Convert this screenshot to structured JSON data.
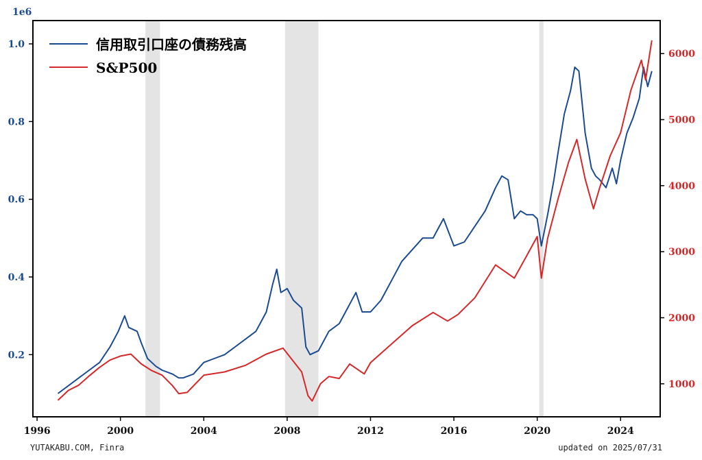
{
  "chart_data": {
    "type": "line",
    "xlim": [
      1995.8,
      2025.9
    ],
    "x_ticks": [
      "1996",
      "2000",
      "2004",
      "2008",
      "2012",
      "2016",
      "2020",
      "2024"
    ],
    "left_axis": {
      "ylim": [
        0.04,
        1.06
      ],
      "ticks": [
        "0.2",
        "0.4",
        "0.6",
        "0.8",
        "1.0"
      ],
      "offset_label": "1e6",
      "color": "#1a4a8f"
    },
    "right_axis": {
      "ylim": [
        500,
        6500
      ],
      "ticks": [
        "1000",
        "2000",
        "3000",
        "4000",
        "5000",
        "6000"
      ],
      "color": "#d62728"
    },
    "recessions": [
      [
        2001.2,
        2001.9
      ],
      [
        2007.9,
        2009.5
      ],
      [
        2020.1,
        2020.3
      ]
    ],
    "legend_position": "top-left",
    "series": [
      {
        "name": "信用取引口座の債務残高",
        "axis": "left",
        "color": "#1a4a8f",
        "points": [
          [
            1997.0,
            0.1
          ],
          [
            1997.5,
            0.12
          ],
          [
            1998.0,
            0.14
          ],
          [
            1998.5,
            0.16
          ],
          [
            1999.0,
            0.18
          ],
          [
            1999.5,
            0.22
          ],
          [
            1999.9,
            0.26
          ],
          [
            2000.2,
            0.3
          ],
          [
            2000.4,
            0.27
          ],
          [
            2000.8,
            0.26
          ],
          [
            2001.0,
            0.23
          ],
          [
            2001.3,
            0.19
          ],
          [
            2001.7,
            0.17
          ],
          [
            2002.0,
            0.16
          ],
          [
            2002.5,
            0.15
          ],
          [
            2002.8,
            0.14
          ],
          [
            2003.0,
            0.14
          ],
          [
            2003.5,
            0.15
          ],
          [
            2004.0,
            0.18
          ],
          [
            2004.5,
            0.19
          ],
          [
            2005.0,
            0.2
          ],
          [
            2005.5,
            0.22
          ],
          [
            2006.0,
            0.24
          ],
          [
            2006.5,
            0.26
          ],
          [
            2007.0,
            0.31
          ],
          [
            2007.3,
            0.38
          ],
          [
            2007.5,
            0.42
          ],
          [
            2007.7,
            0.36
          ],
          [
            2008.0,
            0.37
          ],
          [
            2008.3,
            0.34
          ],
          [
            2008.7,
            0.32
          ],
          [
            2008.9,
            0.22
          ],
          [
            2009.1,
            0.2
          ],
          [
            2009.5,
            0.21
          ],
          [
            2010.0,
            0.26
          ],
          [
            2010.5,
            0.28
          ],
          [
            2011.0,
            0.33
          ],
          [
            2011.3,
            0.36
          ],
          [
            2011.6,
            0.31
          ],
          [
            2012.0,
            0.31
          ],
          [
            2012.5,
            0.34
          ],
          [
            2013.0,
            0.39
          ],
          [
            2013.5,
            0.44
          ],
          [
            2014.0,
            0.47
          ],
          [
            2014.5,
            0.5
          ],
          [
            2015.0,
            0.5
          ],
          [
            2015.5,
            0.55
          ],
          [
            2016.0,
            0.48
          ],
          [
            2016.5,
            0.49
          ],
          [
            2017.0,
            0.53
          ],
          [
            2017.5,
            0.57
          ],
          [
            2018.0,
            0.63
          ],
          [
            2018.3,
            0.66
          ],
          [
            2018.6,
            0.65
          ],
          [
            2018.9,
            0.55
          ],
          [
            2019.2,
            0.57
          ],
          [
            2019.5,
            0.56
          ],
          [
            2019.8,
            0.56
          ],
          [
            2020.0,
            0.55
          ],
          [
            2020.2,
            0.48
          ],
          [
            2020.5,
            0.56
          ],
          [
            2020.8,
            0.65
          ],
          [
            2021.0,
            0.72
          ],
          [
            2021.3,
            0.82
          ],
          [
            2021.6,
            0.88
          ],
          [
            2021.8,
            0.94
          ],
          [
            2022.0,
            0.93
          ],
          [
            2022.3,
            0.77
          ],
          [
            2022.6,
            0.68
          ],
          [
            2022.8,
            0.66
          ],
          [
            2023.0,
            0.65
          ],
          [
            2023.3,
            0.63
          ],
          [
            2023.6,
            0.68
          ],
          [
            2023.8,
            0.64
          ],
          [
            2024.0,
            0.7
          ],
          [
            2024.3,
            0.77
          ],
          [
            2024.6,
            0.81
          ],
          [
            2024.9,
            0.86
          ],
          [
            2025.1,
            0.94
          ],
          [
            2025.3,
            0.89
          ],
          [
            2025.5,
            0.93
          ]
        ]
      },
      {
        "name": "S&P500",
        "axis": "right",
        "color": "#d62728",
        "points": [
          [
            1997.0,
            750
          ],
          [
            1997.5,
            900
          ],
          [
            1998.0,
            980
          ],
          [
            1998.5,
            1120
          ],
          [
            1999.0,
            1250
          ],
          [
            1999.5,
            1360
          ],
          [
            2000.0,
            1420
          ],
          [
            2000.5,
            1450
          ],
          [
            2001.0,
            1300
          ],
          [
            2001.5,
            1200
          ],
          [
            2002.0,
            1130
          ],
          [
            2002.5,
            970
          ],
          [
            2002.8,
            850
          ],
          [
            2003.2,
            870
          ],
          [
            2003.6,
            1000
          ],
          [
            2004.0,
            1130
          ],
          [
            2005.0,
            1180
          ],
          [
            2006.0,
            1280
          ],
          [
            2007.0,
            1450
          ],
          [
            2007.8,
            1540
          ],
          [
            2008.3,
            1340
          ],
          [
            2008.7,
            1180
          ],
          [
            2009.0,
            820
          ],
          [
            2009.2,
            740
          ],
          [
            2009.6,
            1000
          ],
          [
            2010.0,
            1110
          ],
          [
            2010.5,
            1080
          ],
          [
            2011.0,
            1300
          ],
          [
            2011.7,
            1150
          ],
          [
            2012.0,
            1320
          ],
          [
            2013.0,
            1600
          ],
          [
            2014.0,
            1880
          ],
          [
            2015.0,
            2080
          ],
          [
            2015.7,
            1950
          ],
          [
            2016.2,
            2050
          ],
          [
            2017.0,
            2300
          ],
          [
            2018.0,
            2800
          ],
          [
            2018.9,
            2600
          ],
          [
            2019.5,
            2940
          ],
          [
            2020.0,
            3230
          ],
          [
            2020.2,
            2600
          ],
          [
            2020.5,
            3200
          ],
          [
            2021.0,
            3800
          ],
          [
            2021.5,
            4350
          ],
          [
            2021.9,
            4700
          ],
          [
            2022.3,
            4100
          ],
          [
            2022.7,
            3650
          ],
          [
            2023.0,
            3970
          ],
          [
            2023.5,
            4450
          ],
          [
            2024.0,
            4800
          ],
          [
            2024.5,
            5450
          ],
          [
            2025.0,
            5900
          ],
          [
            2025.2,
            5600
          ],
          [
            2025.5,
            6200
          ]
        ]
      }
    ]
  },
  "footer": {
    "source": "YUTAKABU.COM, Finra",
    "updated": "updated on 2025/07/31"
  }
}
